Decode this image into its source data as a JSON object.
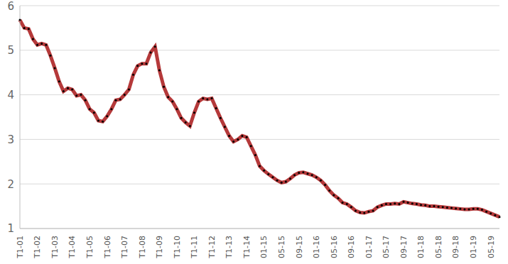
{
  "chart_data": {
    "type": "line",
    "categories": [
      "T1-01",
      null,
      null,
      null,
      "T1-02",
      null,
      null,
      null,
      "T1-03",
      null,
      null,
      null,
      "T1-04",
      null,
      null,
      null,
      "T1-05",
      null,
      null,
      null,
      "T1-06",
      null,
      null,
      null,
      "T1-07",
      null,
      null,
      null,
      "T1-08",
      null,
      null,
      null,
      "T1-09",
      null,
      null,
      null,
      "T1-10",
      null,
      null,
      null,
      "T1-11",
      null,
      null,
      null,
      "T1-12",
      null,
      null,
      null,
      "T1-13",
      null,
      null,
      null,
      "T1-14",
      null,
      null,
      null,
      "01-15",
      null,
      null,
      null,
      "05-15",
      null,
      null,
      null,
      "09-15",
      null,
      null,
      null,
      "01-16",
      null,
      null,
      null,
      "05-16",
      null,
      null,
      null,
      "09-16",
      null,
      null,
      null,
      "01-17",
      null,
      null,
      null,
      "05-17",
      null,
      null,
      null,
      "09-17",
      null,
      null,
      null,
      "01-18",
      null,
      null,
      null,
      "05-18",
      null,
      null,
      null,
      "09-18",
      null,
      null,
      null,
      "01-19",
      null,
      null,
      null,
      "05-19",
      null,
      null
    ],
    "values": [
      5.68,
      5.5,
      5.48,
      5.25,
      5.12,
      5.15,
      5.12,
      4.88,
      4.6,
      4.3,
      4.08,
      4.15,
      4.12,
      3.98,
      4.0,
      3.88,
      3.68,
      3.6,
      3.42,
      3.4,
      3.52,
      3.68,
      3.88,
      3.9,
      4.0,
      4.12,
      4.45,
      4.65,
      4.7,
      4.7,
      4.95,
      5.08,
      4.55,
      4.18,
      3.95,
      3.85,
      3.68,
      3.48,
      3.38,
      3.3,
      3.6,
      3.85,
      3.92,
      3.9,
      3.92,
      3.7,
      3.48,
      3.28,
      3.08,
      2.95,
      3.0,
      3.08,
      3.05,
      2.85,
      2.65,
      2.4,
      2.3,
      2.22,
      2.15,
      2.08,
      2.03,
      2.05,
      2.12,
      2.2,
      2.25,
      2.26,
      2.23,
      2.2,
      2.15,
      2.08,
      1.98,
      1.85,
      1.75,
      1.68,
      1.58,
      1.55,
      1.48,
      1.4,
      1.36,
      1.35,
      1.38,
      1.4,
      1.48,
      1.52,
      1.55,
      1.55,
      1.56,
      1.55,
      1.6,
      1.58,
      1.56,
      1.55,
      1.53,
      1.52,
      1.5,
      1.5,
      1.49,
      1.48,
      1.47,
      1.46,
      1.45,
      1.44,
      1.43,
      1.43,
      1.44,
      1.44,
      1.42,
      1.38,
      1.34,
      1.3,
      1.26
    ],
    "color": "#b5393a",
    "marker": "dot",
    "ylim": [
      1,
      6
    ],
    "yticks": [
      1,
      2,
      3,
      4,
      5,
      6
    ],
    "grid": true
  }
}
